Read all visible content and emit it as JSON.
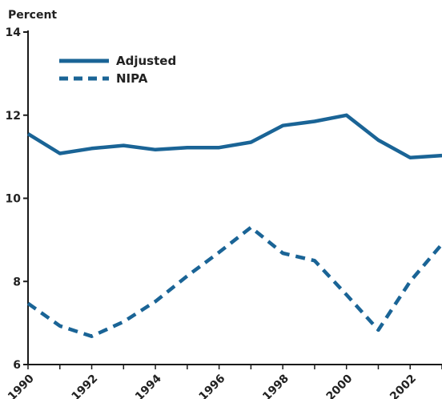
{
  "chart_data": {
    "type": "line",
    "title": "",
    "xlabel": "",
    "ylabel": "Percent",
    "x": [
      1990,
      1991,
      1992,
      1993,
      1994,
      1995,
      1996,
      1997,
      1998,
      1999,
      2000,
      2001,
      2002,
      2003
    ],
    "xlim": [
      1990,
      2003
    ],
    "ylim": [
      6,
      14
    ],
    "x_ticks": [
      "1990",
      "1992",
      "1994",
      "1996",
      "1998",
      "2000",
      "2002"
    ],
    "y_ticks": [
      "6",
      "8",
      "10",
      "12",
      "14"
    ],
    "grid": false,
    "legend_position": "top-left",
    "series": [
      {
        "name": "Adjusted",
        "style": "solid",
        "color": "#1a6496",
        "values": [
          11.55,
          11.08,
          11.2,
          11.27,
          11.17,
          11.22,
          11.22,
          11.35,
          11.75,
          11.85,
          12.0,
          11.4,
          10.98,
          11.03
        ]
      },
      {
        "name": "NIPA",
        "style": "dashed",
        "color": "#1a6496",
        "values": [
          7.47,
          6.93,
          6.68,
          7.03,
          7.52,
          8.13,
          8.7,
          9.3,
          8.68,
          8.5,
          7.68,
          6.83,
          8.0,
          8.9
        ]
      }
    ]
  }
}
